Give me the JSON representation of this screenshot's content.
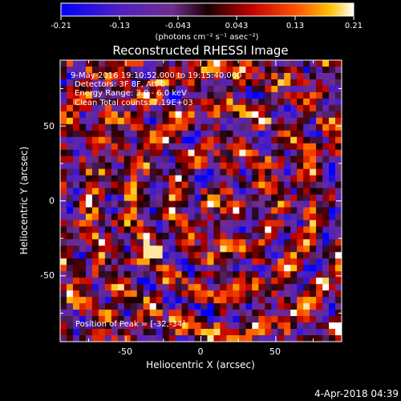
{
  "colorbar": {
    "tick_labels": [
      "-0.21",
      "-0.13",
      "-0.043",
      "0.043",
      "0.13",
      "0.21"
    ],
    "unit_label": "(photons cm⁻² s⁻¹ asec⁻²)",
    "range": [
      -0.21,
      0.21
    ]
  },
  "plot": {
    "title": "Reconstructed RHESSI Image",
    "annotations": [
      "9-May-2016 19:10:52.000 to 19:15:40.000",
      "Detectors: 3F 8F, Att 0",
      "Energy Range: 3.0 - 6.0 keV",
      "Clean     Total counts: 7.19E+03"
    ],
    "peak_label": "Position of Peak = [-32,-34]"
  },
  "footer": {
    "timestamp": "4-Apr-2018 04:39"
  },
  "chart_data": {
    "type": "heatmap",
    "title": "Reconstructed RHESSI Image",
    "xlabel": "Heliocentric X (arcsec)",
    "ylabel": "Heliocentric Y (arcsec)",
    "xlim": [
      -94,
      94
    ],
    "ylim": [
      -94,
      94
    ],
    "xticks": [
      -50,
      0,
      50
    ],
    "yticks": [
      50,
      0,
      -50
    ],
    "color_scale": {
      "min": -0.21,
      "max": 0.21,
      "colors": [
        "#0000ff",
        "#6f2d8e",
        "#1a0000",
        "#e00000",
        "#ff9900",
        "#ffffff"
      ]
    },
    "peak": [
      -32,
      -34
    ]
  }
}
